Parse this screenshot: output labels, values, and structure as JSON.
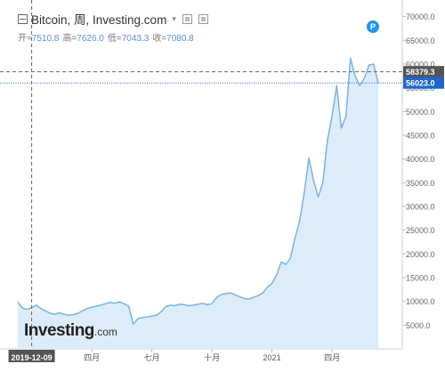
{
  "header": {
    "title": "Bitcoin, 周, Investing.com",
    "ohlc": [
      {
        "label": "开=",
        "value": "7510.8"
      },
      {
        "label": "高=",
        "value": "7626.0"
      },
      {
        "label": "低=",
        "value": "7043.3"
      },
      {
        "label": "收=",
        "value": "7080.8"
      }
    ]
  },
  "badge_text": "P",
  "logo": {
    "main": "Investing",
    "suffix": ".com"
  },
  "crosshair": {
    "x_label": "2019-12-09",
    "y_value": 58379.3,
    "y_label": "58379.3"
  },
  "colors": {
    "line": "#7ab3e3",
    "fill": "#dcedf9",
    "last_price": "#1e66d0",
    "crosshair": "#666666"
  },
  "chart_data": {
    "type": "area",
    "title": "Bitcoin, 周, Investing.com",
    "xlabel": "",
    "ylabel": "",
    "ylim": [
      0,
      72000
    ],
    "y_ticks": [
      5000,
      10000,
      15000,
      20000,
      25000,
      30000,
      35000,
      40000,
      45000,
      50000,
      55000,
      60000,
      65000,
      70000
    ],
    "y_tick_labels": [
      "5000.0",
      "10000.0",
      "15000.0",
      "20000.0",
      "25000.0",
      "30000.0",
      "35000.0",
      "40000.0",
      "45000.0",
      "50000.0",
      "55000.0",
      "60000.0",
      "65000.0",
      "70000.0"
    ],
    "x_tick_labels": [
      {
        "label": "四月",
        "week": 16
      },
      {
        "label": "七月",
        "week": 29
      },
      {
        "label": "十月",
        "week": 42
      },
      {
        "label": "2021",
        "week": 55
      },
      {
        "label": "四月",
        "week": 68
      }
    ],
    "last_price": 56023.0,
    "last_price_label": "56023.0",
    "series": [
      {
        "values": [
          9900,
          8600,
          8300,
          8700,
          9200,
          8500,
          8000,
          7500,
          7300,
          7600,
          7300,
          7100,
          7200,
          7500,
          8000,
          8500,
          8800,
          9000,
          9200,
          9500,
          9800,
          9600,
          9900,
          9500,
          9000,
          5200,
          6400,
          6600,
          6700,
          6900,
          7100,
          7800,
          8900,
          9200,
          9100,
          9400,
          9300,
          9100,
          9200,
          9400,
          9600,
          9300,
          9500,
          10800,
          11500,
          11600,
          11800,
          11400,
          11000,
          10600,
          10500,
          10900,
          11200,
          11800,
          13000,
          13800,
          15600,
          18300,
          17800,
          19100,
          23400,
          27000,
          33000,
          40200,
          35500,
          32000,
          35000,
          44000,
          49000,
          55500,
          46500,
          49000,
          61200,
          57500,
          55500,
          57000,
          59800,
          60000,
          56023
        ]
      }
    ]
  }
}
